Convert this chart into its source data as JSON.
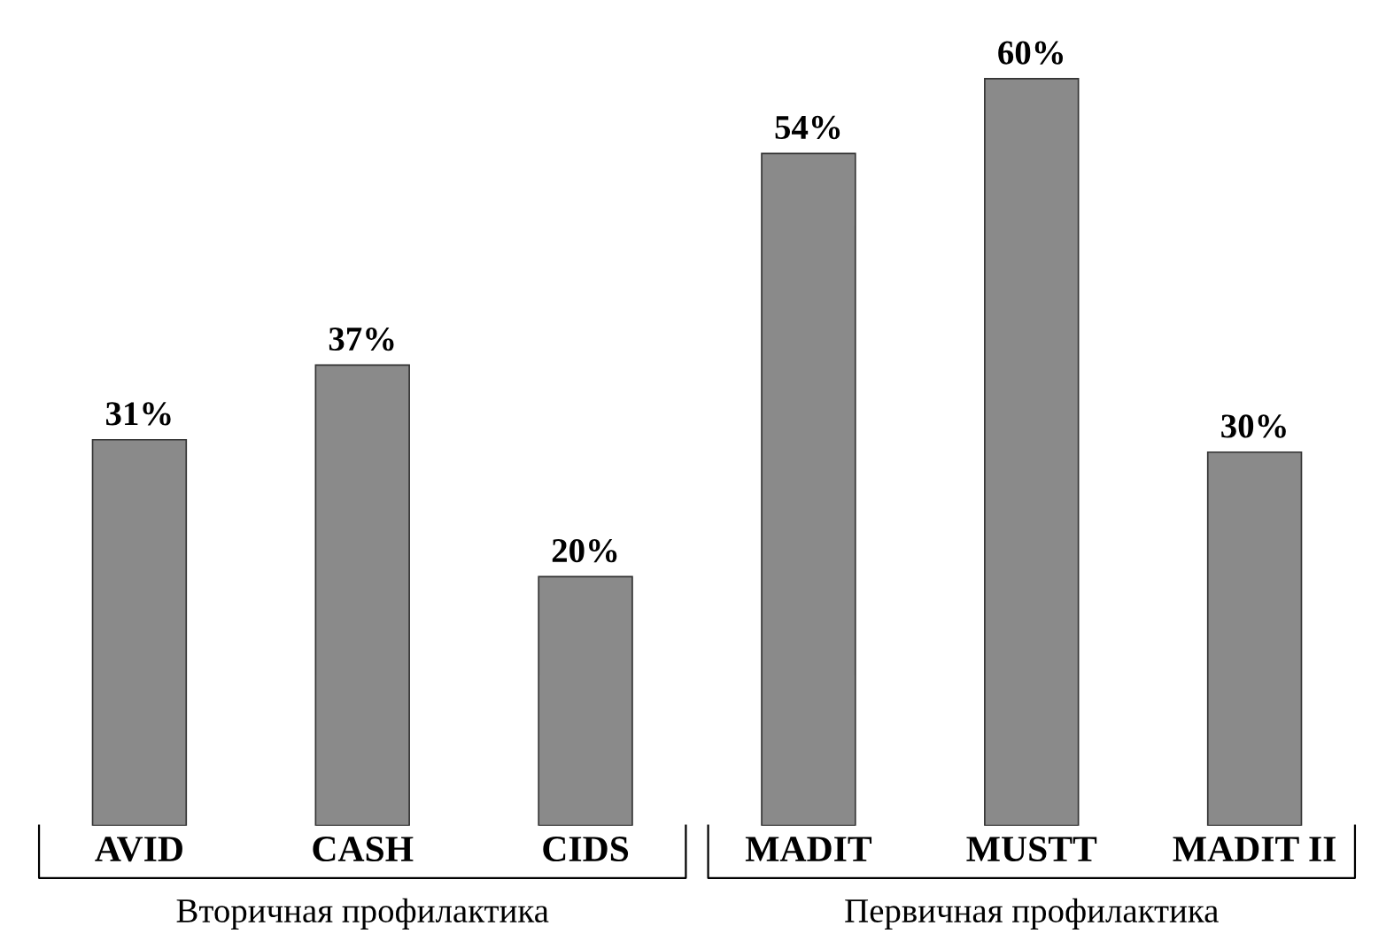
{
  "chart_data": {
    "type": "bar",
    "categories": [
      "AVID",
      "CASH",
      "CIDS",
      "MADIT",
      "MUSTT",
      "MADIT II"
    ],
    "values": [
      31,
      37,
      20,
      54,
      60,
      30
    ],
    "value_labels": [
      "31%",
      "37%",
      "20%",
      "54%",
      "60%",
      "30%"
    ],
    "color": "#8a8a8a",
    "tick_labels": "x",
    "grid": false,
    "annotations": [
      "Вторичная профилактика",
      "Первичная профилактика"
    ]
  }
}
